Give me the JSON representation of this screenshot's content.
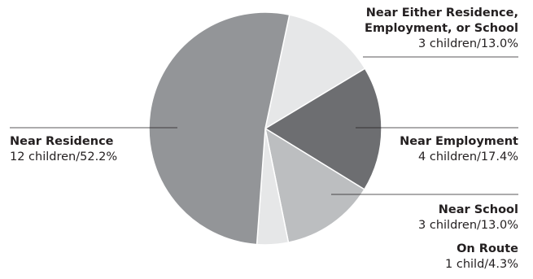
{
  "chart_data": {
    "type": "pie",
    "start_angle_deg": 12,
    "slices": [
      {
        "name": "Near Either Residence, Employment, or School",
        "label_lines": [
          "Near Either Residence,",
          "Employment, or School"
        ],
        "value_text": "3 children/13.0%",
        "count": 3,
        "percent": 13.0,
        "color": "#e6e7e8"
      },
      {
        "name": "Near Employment",
        "label_lines": [
          "Near Employment"
        ],
        "value_text": "4 children/17.4%",
        "count": 4,
        "percent": 17.4,
        "color": "#6d6e71"
      },
      {
        "name": "Near School",
        "label_lines": [
          "Near School"
        ],
        "value_text": "3 children/13.0%",
        "count": 3,
        "percent": 13.0,
        "color": "#bcbec0"
      },
      {
        "name": "On Route",
        "label_lines": [
          "On Route"
        ],
        "value_text": "1 child/4.3%",
        "count": 1,
        "percent": 4.3,
        "color": "#e6e7e8"
      },
      {
        "name": "Near Residence",
        "label_lines": [
          "Near Residence"
        ],
        "value_text": "12 children/52.2%",
        "count": 12,
        "percent": 52.2,
        "color": "#939598"
      }
    ]
  }
}
